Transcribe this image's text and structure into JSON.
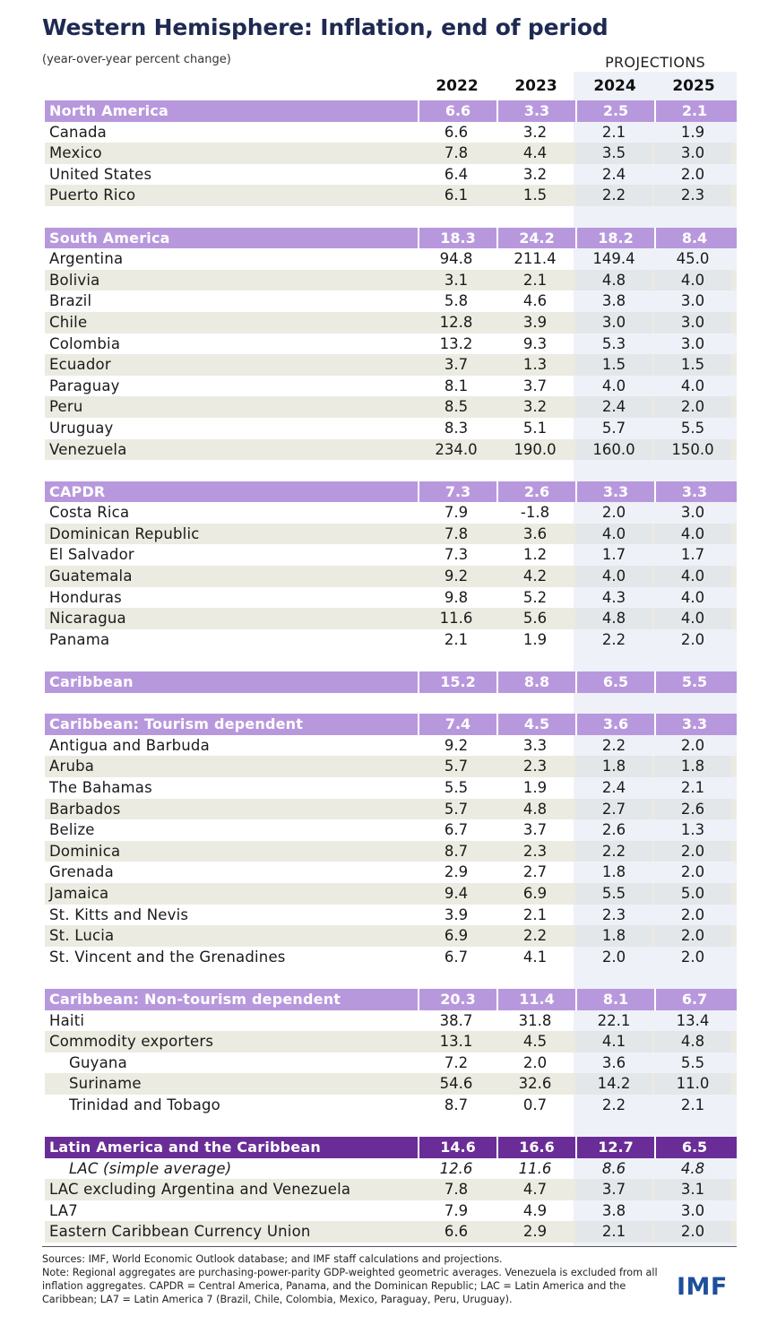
{
  "title": "Western Hemisphere: Inflation, end of period",
  "subtitle": "(year-over-year percent change)",
  "projections_label": "PROJECTIONS",
  "years": [
    "2022",
    "2023",
    "2024",
    "2025"
  ],
  "rows": [
    {
      "type": "header",
      "name": "North America",
      "values": [
        "6.6",
        "3.3",
        "2.5",
        "2.1"
      ]
    },
    {
      "type": "plain",
      "name": "Canada",
      "values": [
        "6.6",
        "3.2",
        "2.1",
        "1.9"
      ]
    },
    {
      "type": "shade",
      "name": "Mexico",
      "values": [
        "7.8",
        "4.4",
        "3.5",
        "3.0"
      ]
    },
    {
      "type": "plain",
      "name": "United States",
      "values": [
        "6.4",
        "3.2",
        "2.4",
        "2.0"
      ]
    },
    {
      "type": "shade",
      "name": "Puerto Rico",
      "values": [
        "6.1",
        "1.5",
        "2.2",
        "2.3"
      ]
    },
    {
      "type": "gap"
    },
    {
      "type": "header",
      "name": "South America",
      "values": [
        "18.3",
        "24.2",
        "18.2",
        "8.4"
      ]
    },
    {
      "type": "plain",
      "name": "Argentina",
      "values": [
        "94.8",
        "211.4",
        "149.4",
        "45.0"
      ]
    },
    {
      "type": "shade",
      "name": "Bolivia",
      "values": [
        "3.1",
        "2.1",
        "4.8",
        "4.0"
      ]
    },
    {
      "type": "plain",
      "name": "Brazil",
      "values": [
        "5.8",
        "4.6",
        "3.8",
        "3.0"
      ]
    },
    {
      "type": "shade",
      "name": "Chile",
      "values": [
        "12.8",
        "3.9",
        "3.0",
        "3.0"
      ]
    },
    {
      "type": "plain",
      "name": "Colombia",
      "values": [
        "13.2",
        "9.3",
        "5.3",
        "3.0"
      ]
    },
    {
      "type": "shade",
      "name": "Ecuador",
      "values": [
        "3.7",
        "1.3",
        "1.5",
        "1.5"
      ]
    },
    {
      "type": "plain",
      "name": "Paraguay",
      "values": [
        "8.1",
        "3.7",
        "4.0",
        "4.0"
      ]
    },
    {
      "type": "shade",
      "name": "Peru",
      "values": [
        "8.5",
        "3.2",
        "2.4",
        "2.0"
      ]
    },
    {
      "type": "plain",
      "name": "Uruguay",
      "values": [
        "8.3",
        "5.1",
        "5.7",
        "5.5"
      ]
    },
    {
      "type": "shade",
      "name": "Venezuela",
      "values": [
        "234.0",
        "190.0",
        "160.0",
        "150.0"
      ]
    },
    {
      "type": "gap"
    },
    {
      "type": "header",
      "name": "CAPDR",
      "values": [
        "7.3",
        "2.6",
        "3.3",
        "3.3"
      ]
    },
    {
      "type": "plain",
      "name": "Costa Rica",
      "values": [
        "7.9",
        "-1.8",
        "2.0",
        "3.0"
      ]
    },
    {
      "type": "shade",
      "name": "Dominican Republic",
      "values": [
        "7.8",
        "3.6",
        "4.0",
        "4.0"
      ]
    },
    {
      "type": "plain",
      "name": "El Salvador",
      "values": [
        "7.3",
        "1.2",
        "1.7",
        "1.7"
      ]
    },
    {
      "type": "shade",
      "name": "Guatemala",
      "values": [
        "9.2",
        "4.2",
        "4.0",
        "4.0"
      ]
    },
    {
      "type": "plain",
      "name": "Honduras",
      "values": [
        "9.8",
        "5.2",
        "4.3",
        "4.0"
      ]
    },
    {
      "type": "shade",
      "name": "Nicaragua",
      "values": [
        "11.6",
        "5.6",
        "4.8",
        "4.0"
      ]
    },
    {
      "type": "plain",
      "name": "Panama",
      "values": [
        "2.1",
        "1.9",
        "2.2",
        "2.0"
      ]
    },
    {
      "type": "gap"
    },
    {
      "type": "header",
      "name": "Caribbean",
      "values": [
        "15.2",
        "8.8",
        "6.5",
        "5.5"
      ]
    },
    {
      "type": "gap"
    },
    {
      "type": "header",
      "name": "Caribbean: Tourism dependent",
      "values": [
        "7.4",
        "4.5",
        "3.6",
        "3.3"
      ]
    },
    {
      "type": "plain",
      "name": "Antigua and Barbuda",
      "values": [
        "9.2",
        "3.3",
        "2.2",
        "2.0"
      ]
    },
    {
      "type": "shade",
      "name": "Aruba",
      "values": [
        "5.7",
        "2.3",
        "1.8",
        "1.8"
      ]
    },
    {
      "type": "plain",
      "name": "The Bahamas",
      "values": [
        "5.5",
        "1.9",
        "2.4",
        "2.1"
      ]
    },
    {
      "type": "shade",
      "name": "Barbados",
      "values": [
        "5.7",
        "4.8",
        "2.7",
        "2.6"
      ]
    },
    {
      "type": "plain",
      "name": "Belize",
      "values": [
        "6.7",
        "3.7",
        "2.6",
        "1.3"
      ]
    },
    {
      "type": "shade",
      "name": "Dominica",
      "values": [
        "8.7",
        "2.3",
        "2.2",
        "2.0"
      ]
    },
    {
      "type": "plain",
      "name": "Grenada",
      "values": [
        "2.9",
        "2.7",
        "1.8",
        "2.0"
      ]
    },
    {
      "type": "shade",
      "name": "Jamaica",
      "values": [
        "9.4",
        "6.9",
        "5.5",
        "5.0"
      ]
    },
    {
      "type": "plain",
      "name": "St. Kitts and Nevis",
      "values": [
        "3.9",
        "2.1",
        "2.3",
        "2.0"
      ]
    },
    {
      "type": "shade",
      "name": "St. Lucia",
      "values": [
        "6.9",
        "2.2",
        "1.8",
        "2.0"
      ]
    },
    {
      "type": "plain",
      "name": "St. Vincent and the Grenadines",
      "values": [
        "6.7",
        "4.1",
        "2.0",
        "2.0"
      ]
    },
    {
      "type": "gap"
    },
    {
      "type": "header",
      "name": "Caribbean: Non-tourism dependent",
      "values": [
        "20.3",
        "11.4",
        "8.1",
        "6.7"
      ]
    },
    {
      "type": "plain",
      "name": "Haiti",
      "values": [
        "38.7",
        "31.8",
        "22.1",
        "13.4"
      ]
    },
    {
      "type": "shade",
      "name": "Commodity exporters",
      "values": [
        "13.1",
        "4.5",
        "4.1",
        "4.8"
      ]
    },
    {
      "type": "plain",
      "sub": true,
      "name": "Guyana",
      "values": [
        "7.2",
        "2.0",
        "3.6",
        "5.5"
      ]
    },
    {
      "type": "shade",
      "sub": true,
      "name": "Suriname",
      "values": [
        "54.6",
        "32.6",
        "14.2",
        "11.0"
      ]
    },
    {
      "type": "plain",
      "sub": true,
      "name": "Trinidad and Tobago",
      "values": [
        "8.7",
        "0.7",
        "2.2",
        "2.1"
      ]
    },
    {
      "type": "gap"
    },
    {
      "type": "lac",
      "name": "Latin America and the Caribbean",
      "values": [
        "14.6",
        "16.6",
        "12.7",
        "6.5"
      ]
    },
    {
      "type": "plain",
      "italic": true,
      "sub": true,
      "name": "LAC (simple average)",
      "values": [
        "12.6",
        "11.6",
        "8.6",
        "4.8"
      ]
    },
    {
      "type": "shade",
      "name": "LAC excluding Argentina and Venezuela",
      "values": [
        "7.8",
        "4.7",
        "3.7",
        "3.1"
      ]
    },
    {
      "type": "plain",
      "name": "LA7",
      "values": [
        "7.9",
        "4.9",
        "3.8",
        "3.0"
      ]
    },
    {
      "type": "shade",
      "name": "Eastern Caribbean Currency Union",
      "values": [
        "6.6",
        "2.9",
        "2.1",
        "2.0"
      ]
    }
  ],
  "notes": {
    "sources": "Sources: IMF, World Economic Outlook database;  and IMF staff calculations and projections.",
    "note": "Note: Regional aggregates are purchasing-power-parity GDP-weighted  geometric averages. Venezuela is excluded from all inflation aggregates. CAPDR = Central America, Panama, and the Dominican Republic; LAC = Latin America and the Caribbean; LA7 = Latin America 7 (Brazil, Chile, Colombia, Mexico, Paraguay, Peru, Uruguay)."
  },
  "logo": "IMF",
  "colors": {
    "header": "#b898dd",
    "lac": "#6a2d97",
    "title": "#1f2a52",
    "logo": "#1d4f9c",
    "shade": "#ecebe1",
    "projection_bg": "#eef1f7"
  }
}
